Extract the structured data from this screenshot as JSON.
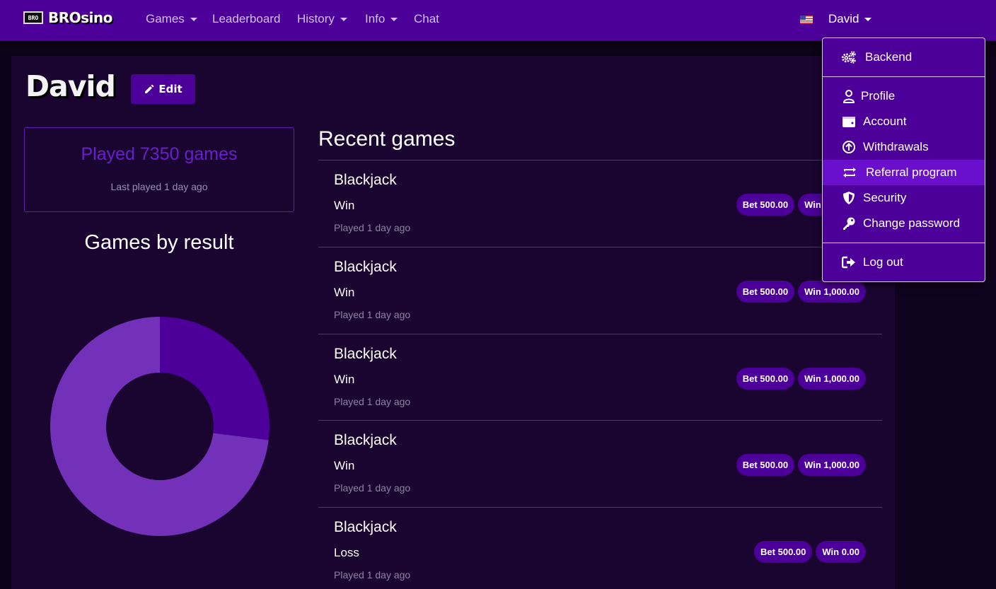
{
  "brand": {
    "badge": "BRO",
    "name": "BROsino"
  },
  "nav": {
    "items": [
      {
        "label": "Games",
        "has_caret": true
      },
      {
        "label": "Leaderboard",
        "has_caret": false
      },
      {
        "label": "History",
        "has_caret": true
      },
      {
        "label": "Info",
        "has_caret": true
      },
      {
        "label": "Chat",
        "has_caret": false
      }
    ],
    "user": "David",
    "flag": "us-flag-icon"
  },
  "profile": {
    "name": "David",
    "edit_label": "Edit"
  },
  "stats": {
    "played": "Played 7350 games",
    "last_played": "Last played 1 day ago"
  },
  "chart_title": "Games by result",
  "chart_data": {
    "type": "pie",
    "donut": true,
    "slices": [
      {
        "value": 27,
        "color": "#4c0099"
      },
      {
        "value": 73,
        "color": "#7330b8"
      }
    ]
  },
  "recent": {
    "title": "Recent games",
    "games": [
      {
        "title": "Blackjack",
        "result": "Win",
        "time": "Played 1 day ago",
        "bet": "Bet 500.00",
        "win": "Win 1,000.00"
      },
      {
        "title": "Blackjack",
        "result": "Win",
        "time": "Played 1 day ago",
        "bet": "Bet 500.00",
        "win": "Win 1,000.00"
      },
      {
        "title": "Blackjack",
        "result": "Win",
        "time": "Played 1 day ago",
        "bet": "Bet 500.00",
        "win": "Win 1,000.00"
      },
      {
        "title": "Blackjack",
        "result": "Win",
        "time": "Played 1 day ago",
        "bet": "Bet 500.00",
        "win": "Win 1,000.00"
      },
      {
        "title": "Blackjack",
        "result": "Loss",
        "time": "Played 1 day ago",
        "bet": "Bet 500.00",
        "win": "Win 0.00"
      }
    ]
  },
  "dropdown": {
    "backend": "Backend",
    "profile": "Profile",
    "account": "Account",
    "withdrawals": "Withdrawals",
    "referral": "Referral program",
    "security": "Security",
    "change_password": "Change password",
    "logout": "Log out"
  },
  "colors": {
    "navbar": "#4c0099",
    "accent_active": "#6a10cc",
    "panel": "#1a0530",
    "background": "#0d0318"
  }
}
